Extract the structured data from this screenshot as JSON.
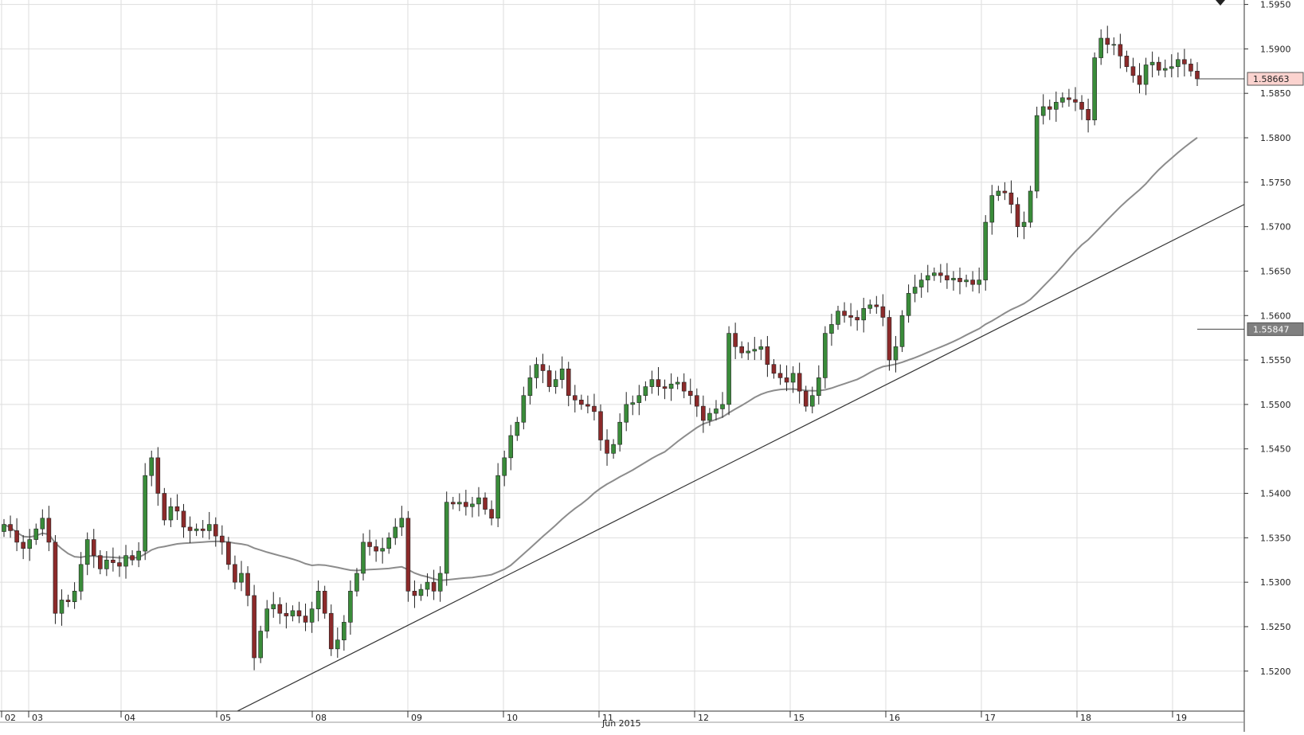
{
  "chart_data": {
    "type": "candlestick",
    "symbol_hidden": true,
    "ylim": [
      1.5155,
      1.5955
    ],
    "y_ticks": [
      "1.5200",
      "1.5250",
      "1.5300",
      "1.5350",
      "1.5400",
      "1.5450",
      "1.5500",
      "1.5550",
      "1.5600",
      "1.5650",
      "1.5700",
      "1.5750",
      "1.5800",
      "1.5850",
      "1.5900",
      "1.5950"
    ],
    "x_ticks": [
      "02",
      "03",
      "04",
      "05",
      "08",
      "09",
      "10",
      "11",
      "12",
      "15",
      "16",
      "17",
      "18",
      "19"
    ],
    "x_month_label": "Jun 2015",
    "last_price_label": "1.58663",
    "last_price": 1.58663,
    "ma_label": "1.55847",
    "ma_value": 1.55847,
    "trendline": {
      "from": 1.5155,
      "to": 1.5725
    },
    "colors": {
      "up": "#3a8c3a",
      "down": "#8c2a2a",
      "ma": "#8c8c8c",
      "trend": "#333333",
      "price_badge_bg": "#fbd3cf",
      "ma_badge_bg": "#7f7f7f"
    },
    "price_path": [
      1.5365,
      1.5358,
      1.5345,
      1.5338,
      1.5348,
      1.536,
      1.5372,
      1.5345,
      1.5265,
      1.528,
      1.5278,
      1.529,
      1.532,
      1.5348,
      1.533,
      1.5315,
      1.5325,
      1.5322,
      1.5318,
      1.533,
      1.5325,
      1.5335,
      1.542,
      1.544,
      1.54,
      1.537,
      1.5385,
      1.538,
      1.5362,
      1.5358,
      1.536,
      1.5358,
      1.5365,
      1.5352,
      1.5345,
      1.532,
      1.53,
      1.531,
      1.5285,
      1.5215,
      1.5245,
      1.527,
      1.5275,
      1.5265,
      1.5262,
      1.5268,
      1.5262,
      1.5255,
      1.527,
      1.529,
      1.5265,
      1.5225,
      1.5235,
      1.5255,
      1.529,
      1.531,
      1.5345,
      1.534,
      1.5335,
      1.5338,
      1.535,
      1.5362,
      1.5372,
      1.529,
      1.5285,
      1.5292,
      1.53,
      1.529,
      1.531,
      1.539,
      1.5388,
      1.539,
      1.5385,
      1.5388,
      1.5395,
      1.5382,
      1.5372,
      1.542,
      1.544,
      1.5465,
      1.548,
      1.551,
      1.553,
      1.5545,
      1.5538,
      1.552,
      1.5528,
      1.554,
      1.551,
      1.5505,
      1.55,
      1.5498,
      1.5492,
      1.546,
      1.5445,
      1.5455,
      1.548,
      1.55,
      1.5502,
      1.551,
      1.552,
      1.5528,
      1.552,
      1.5518,
      1.5523,
      1.5525,
      1.5515,
      1.551,
      1.5498,
      1.5482,
      1.549,
      1.5495,
      1.55,
      1.558,
      1.5565,
      1.5558,
      1.556,
      1.5562,
      1.5565,
      1.5545,
      1.5535,
      1.553,
      1.5525,
      1.5535,
      1.5515,
      1.5498,
      1.551,
      1.553,
      1.558,
      1.559,
      1.5605,
      1.56,
      1.5598,
      1.5595,
      1.5608,
      1.5612,
      1.561,
      1.5598,
      1.555,
      1.5565,
      1.56,
      1.5625,
      1.5632,
      1.564,
      1.5645,
      1.5648,
      1.5645,
      1.564,
      1.5642,
      1.5638,
      1.564,
      1.5635,
      1.564,
      1.5705,
      1.5735,
      1.574,
      1.5738,
      1.5725,
      1.57,
      1.5705,
      1.574,
      1.5825,
      1.5835,
      1.5832,
      1.584,
      1.5845,
      1.5843,
      1.584,
      1.5832,
      1.582,
      1.589,
      1.5912,
      1.5905,
      1.5905,
      1.5892,
      1.588,
      1.587,
      1.586,
      1.5882,
      1.5885,
      1.5876,
      1.5878,
      1.588,
      1.5888,
      1.5883,
      1.5875,
      1.58663
    ]
  }
}
